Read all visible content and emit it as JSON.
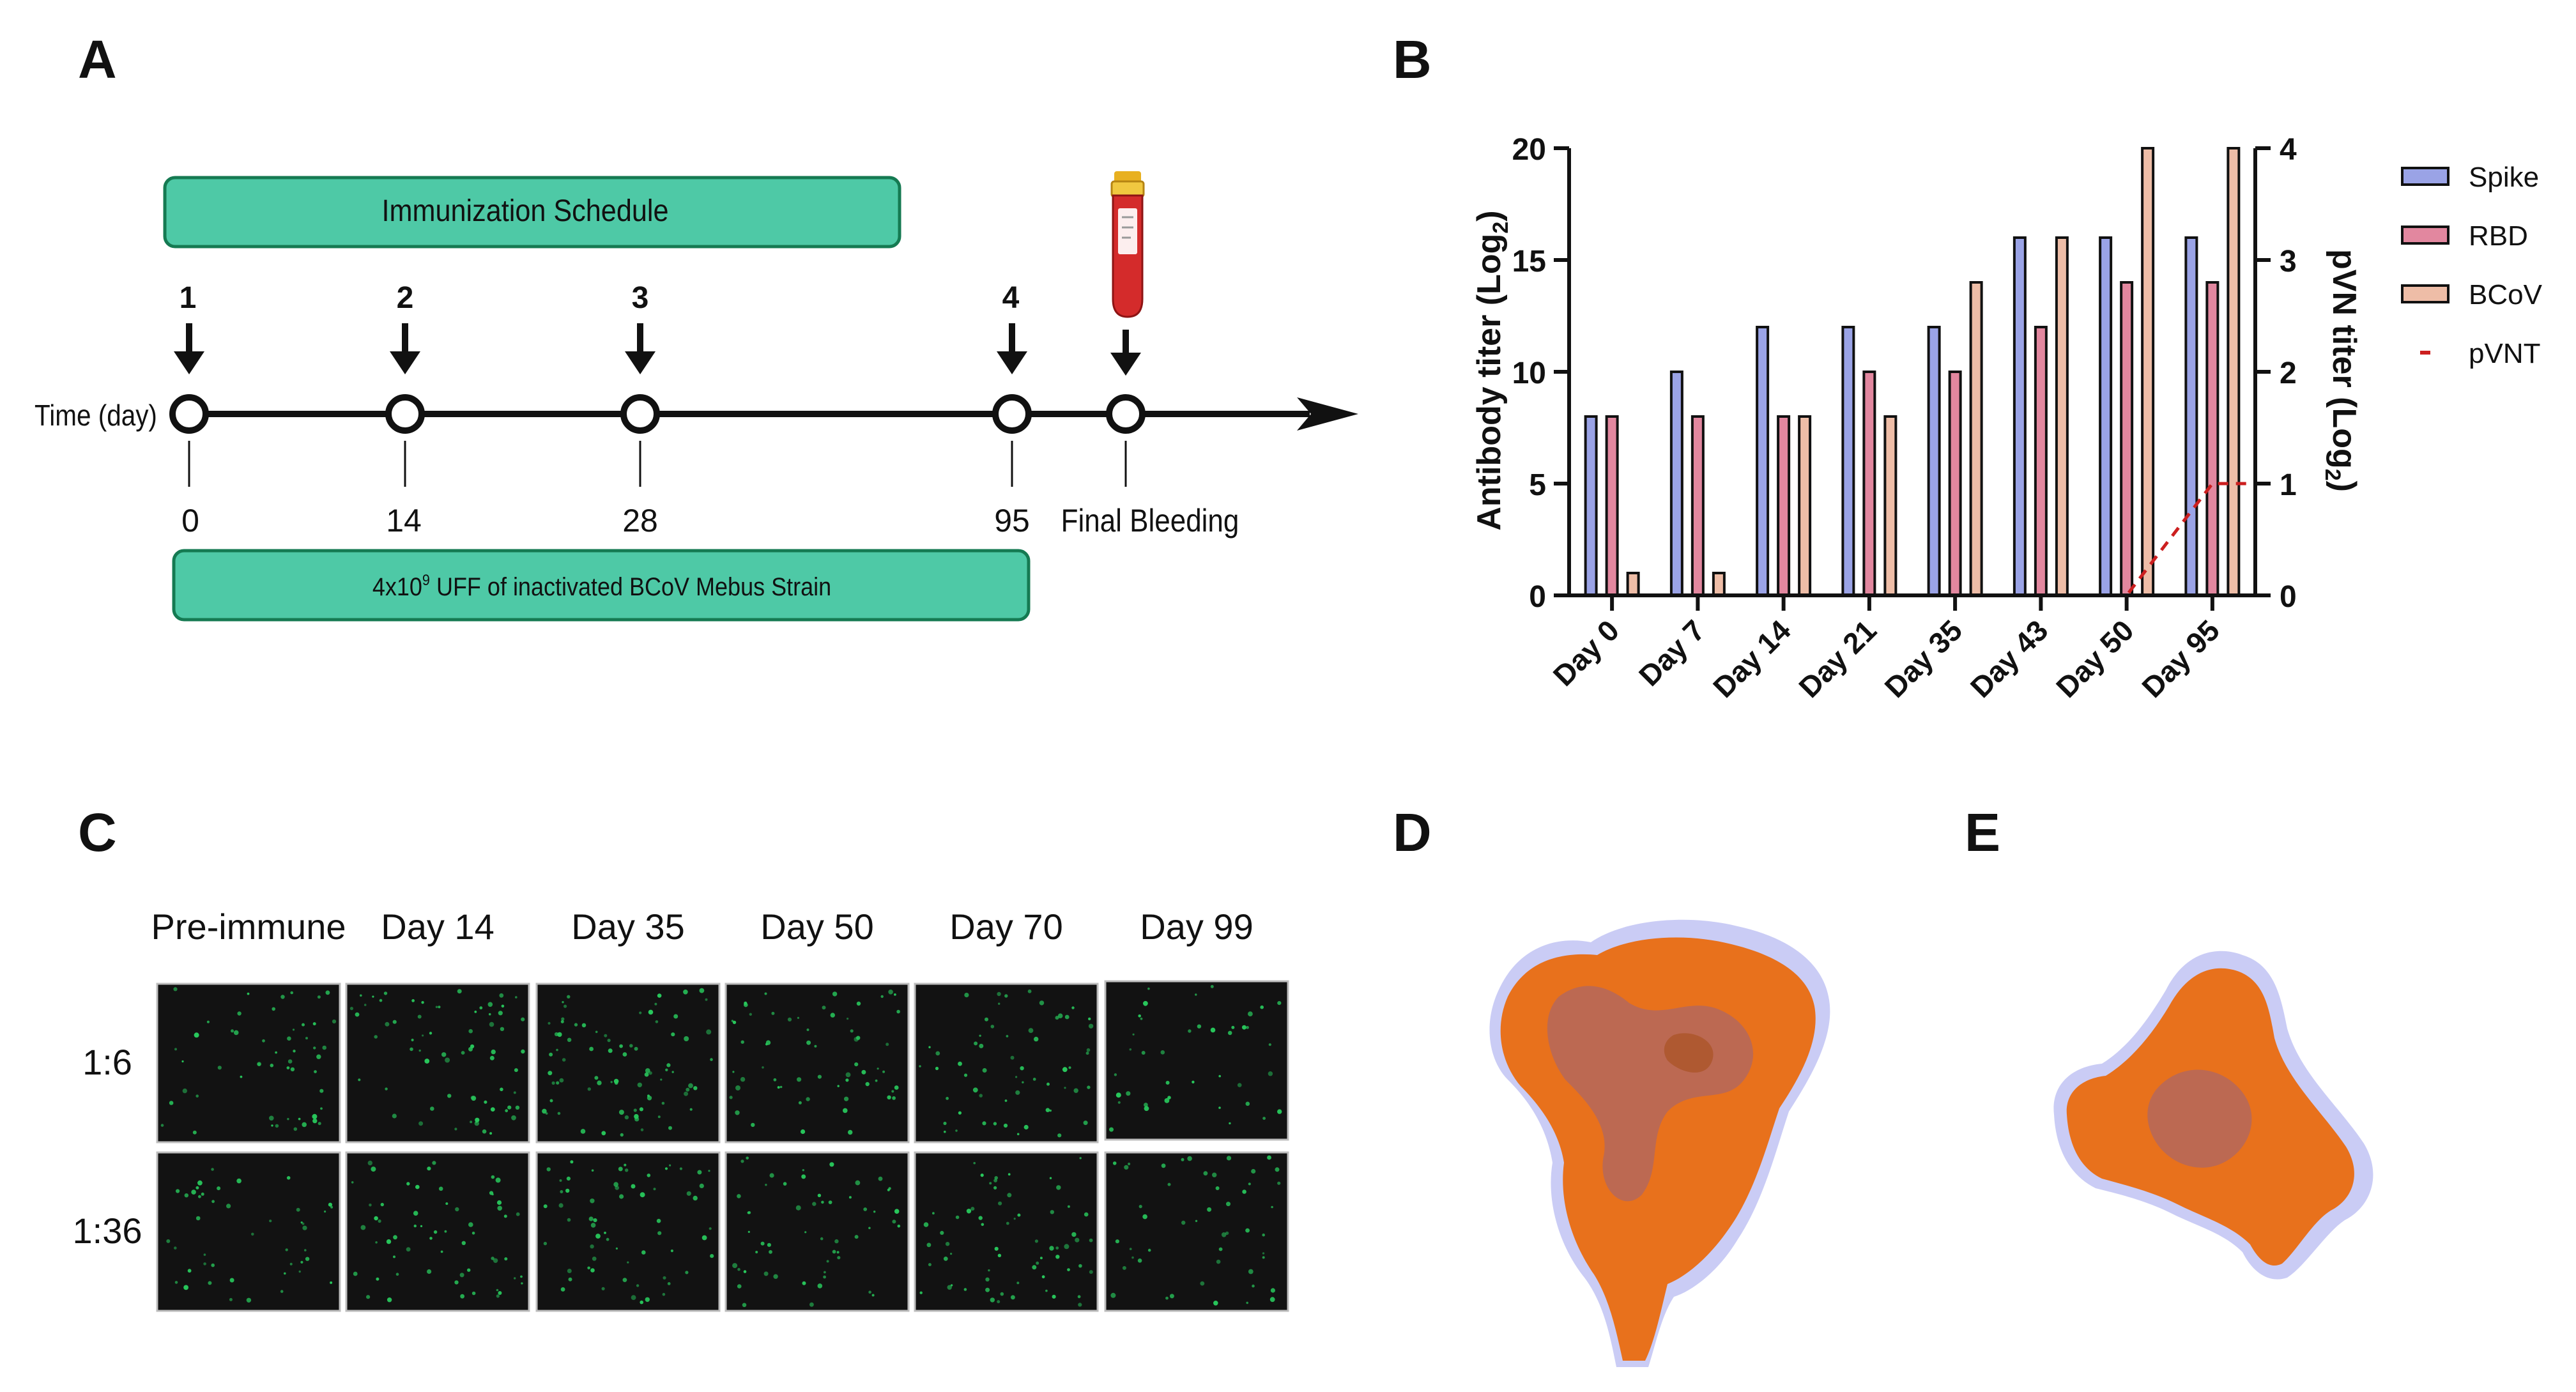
{
  "panel_labels": {
    "a": "A",
    "b": "B",
    "c": "C",
    "d": "D",
    "e": "E"
  },
  "colors": {
    "teal": "#4ec9a6",
    "teal_border": "#157a52",
    "tube_red": "#d42b2b",
    "tube_cap": "#e8b020",
    "spike": "#9aa3e6",
    "rbd": "#e2879f",
    "bcov": "#eebda7",
    "pvnt": "#cc1f1f",
    "protein_orange": "#e8711c",
    "protein_halo": "#8a8ee8",
    "micrograph_bg": "#121212",
    "micrograph_dot": "#28c85c"
  },
  "panel_a": {
    "banner_top": "Immunization Schedule",
    "banner_bottom_prefix": "4x10",
    "banner_bottom_sup": "9",
    "banner_bottom_suffix": " UFF of inactivated BCoV Mebus Strain",
    "axis_label": "Time (day)",
    "doses": [
      {
        "number": "1",
        "day_label": "0"
      },
      {
        "number": "2",
        "day_label": "14"
      },
      {
        "number": "3",
        "day_label": "28"
      },
      {
        "number": "4",
        "day_label": "95"
      }
    ],
    "final_label": "Final Bleeding",
    "icons": [
      "down-arrow-icon",
      "blood-tube-icon",
      "timeline-arrowhead-icon"
    ]
  },
  "chart_data": {
    "type": "bar",
    "title": "",
    "categories": [
      "Day 0",
      "Day 7",
      "Day 14",
      "Day 21",
      "Day 35",
      "Day 43",
      "Day 50",
      "Day 95"
    ],
    "series": [
      {
        "name": "Spike",
        "axis": "left",
        "values": [
          8,
          10,
          12,
          12,
          12,
          16,
          16,
          16
        ]
      },
      {
        "name": "RBD",
        "axis": "left",
        "values": [
          8,
          8,
          8,
          10,
          10,
          12,
          14,
          14
        ]
      },
      {
        "name": "BCoV",
        "axis": "left",
        "values": [
          1,
          1,
          8,
          8,
          14,
          16,
          20,
          20
        ]
      },
      {
        "name": "pVNT",
        "axis": "right",
        "type": "line",
        "style": "dashed",
        "values": [
          0,
          0,
          0,
          0,
          0,
          0,
          0,
          1
        ]
      }
    ],
    "ylabel": "Antibody titer (Log",
    "ylabel_sub": "2",
    "ylabel_close": ")",
    "y2label": "pVN titer (Log",
    "y2label_sub": "2",
    "y2label_close": ")",
    "ylim": [
      0,
      20
    ],
    "y2lim": [
      0,
      4
    ],
    "yticks": [
      "0",
      "5",
      "10",
      "15",
      "20"
    ],
    "y2ticks": [
      "0",
      "1",
      "2",
      "3",
      "4"
    ],
    "legend_position": "right",
    "grid": false
  },
  "panel_c": {
    "columns": [
      "Pre-immune",
      "Day 14",
      "Day 35",
      "Day 50",
      "Day 70",
      "Day 99"
    ],
    "rows": [
      "1:6",
      "1:36"
    ],
    "dot_densities": [
      [
        52,
        66,
        78,
        60,
        58,
        40
      ],
      [
        44,
        58,
        62,
        54,
        64,
        48
      ]
    ]
  },
  "panel_d": {
    "icon": "spike-protein-side-view-icon"
  },
  "panel_e": {
    "icon": "spike-protein-top-view-icon"
  }
}
